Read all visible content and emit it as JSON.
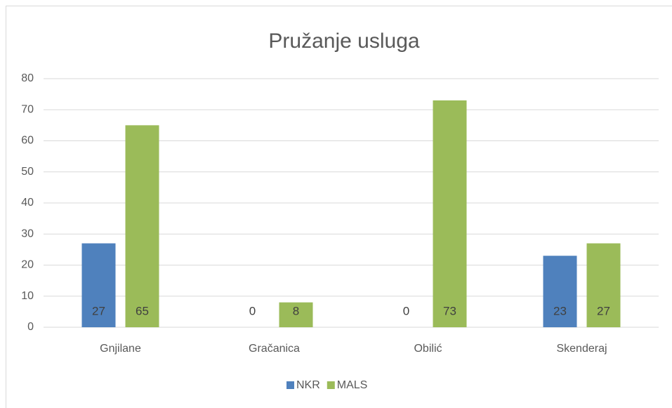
{
  "chart_data": {
    "type": "bar",
    "title": "Pružanje usluga",
    "categories": [
      "Gnjilane",
      "Gračanica",
      "Obilić",
      "Skenderaj"
    ],
    "series": [
      {
        "name": "NKR",
        "color": "#4f81bd",
        "values": [
          27,
          0,
          0,
          23
        ]
      },
      {
        "name": "MALS",
        "color": "#9bbb59",
        "values": [
          65,
          8,
          73,
          27
        ]
      }
    ],
    "ylim": [
      0,
      80
    ],
    "yticks": [
      0,
      10,
      20,
      30,
      40,
      50,
      60,
      70,
      80
    ],
    "grid": true,
    "legend": "bottom",
    "data_labels": true
  }
}
